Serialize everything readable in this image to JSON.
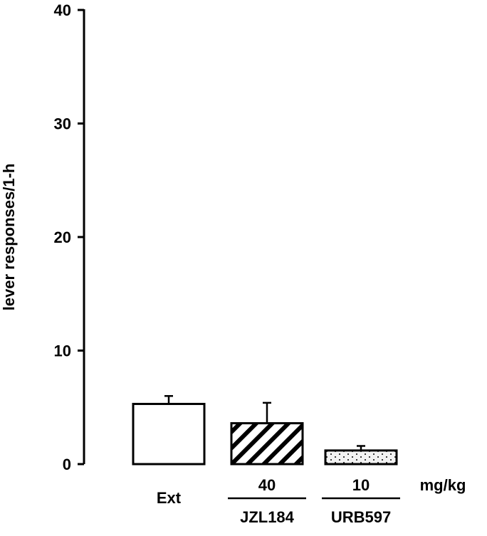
{
  "chart_data": {
    "type": "bar",
    "title": "",
    "ylabel": "lever responses/1-h",
    "ylim": [
      0,
      40
    ],
    "yticks": [
      0,
      10,
      20,
      30,
      40
    ],
    "categories": [
      "Ext",
      "JZL184",
      "URB597"
    ],
    "values": [
      5.3,
      3.6,
      1.2
    ],
    "errors": [
      0.7,
      1.8,
      0.4
    ],
    "fills": [
      "white",
      "hatch",
      "dots"
    ],
    "dose_labels": [
      "",
      "40",
      "10"
    ],
    "dose_unit": "mg/kg",
    "category_labels": [
      "Ext",
      "JZL184",
      "URB597"
    ],
    "grid": false
  }
}
